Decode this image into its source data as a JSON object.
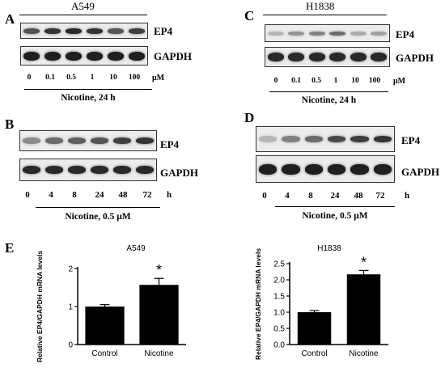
{
  "panels": [
    {
      "letter": "A",
      "cell_line": "A549",
      "blots": [
        "EP4",
        "GAPDH"
      ],
      "lanes": [
        "0",
        "0.1",
        "0.5",
        "1",
        "10",
        "100"
      ],
      "unit": "μM",
      "treatment": "Nicotine, 24 h"
    },
    {
      "letter": "C",
      "cell_line": "H1838",
      "blots": [
        "EP4",
        "GAPDH"
      ],
      "lanes": [
        "0",
        "0.1",
        "0.5",
        "1",
        "10",
        "100"
      ],
      "unit": "μM",
      "treatment": "Nicotine, 24 h"
    },
    {
      "letter": "B",
      "cell_line": "",
      "blots": [
        "EP4",
        "GAPDH"
      ],
      "lanes": [
        "0",
        "4",
        "8",
        "24",
        "48",
        "72"
      ],
      "unit": "h",
      "treatment": "Nicotine, 0.5 μM"
    },
    {
      "letter": "D",
      "cell_line": "",
      "blots": [
        "EP4",
        "GAPDH"
      ],
      "lanes": [
        "0",
        "4",
        "8",
        "24",
        "48",
        "72"
      ],
      "unit": "h",
      "treatment": "Nicotine, 0.5 μM"
    }
  ],
  "panel_e_letter": "E",
  "colors": {
    "bar": "#000000",
    "band_dark": "#161616",
    "band_light": "#4a4a4a"
  },
  "chart_data": [
    {
      "type": "bar",
      "title": "A549",
      "categories": [
        "Control",
        "Nicotine"
      ],
      "values": [
        1.0,
        1.57
      ],
      "errors": [
        0.05,
        0.17
      ],
      "significance": [
        "",
        "*"
      ],
      "ylabel": "Relative EP4/GAPDH mRNA levels",
      "ylim": [
        0,
        2
      ],
      "yticks": [
        "0",
        "1",
        "2"
      ]
    },
    {
      "type": "bar",
      "title": "H1838",
      "categories": [
        "Control",
        "Nicotine"
      ],
      "values": [
        1.0,
        2.17
      ],
      "errors": [
        0.05,
        0.12
      ],
      "significance": [
        "",
        "*"
      ],
      "ylabel": "Relative EP4/GAPDH mRNA levels",
      "ylim": [
        0,
        2.5
      ],
      "yticks": [
        "0.0",
        "0.5",
        "1.0",
        "1.5",
        "2.0",
        "2.5"
      ]
    }
  ]
}
